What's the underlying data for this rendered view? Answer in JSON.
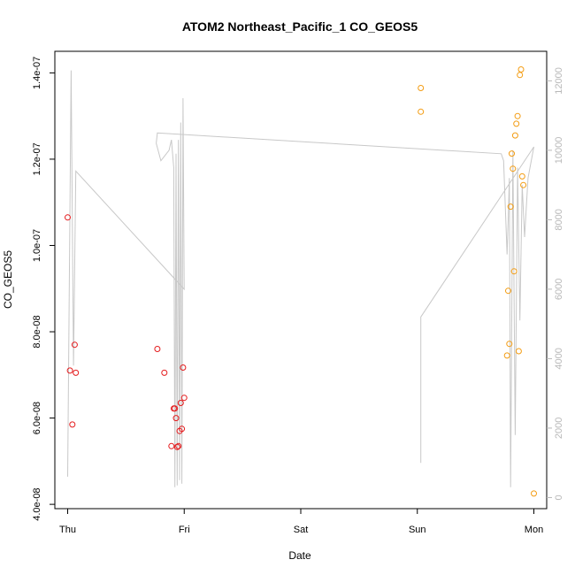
{
  "chart_data": {
    "type": "scatter",
    "title": "ATOM2 Northeast_Pacific_1 CO_GEOS5",
    "xlabel": "Date",
    "ylabel": "CO_GEOS5",
    "x_ticks": [
      "Thu",
      "Fri",
      "Sat",
      "Sun",
      "Mon"
    ],
    "xlim": [
      -0.11,
      4.11
    ],
    "ylim": [
      3.9e-08,
      1.45e-07
    ],
    "y_ticks": [
      "4.0e-08",
      "6.0e-08",
      "8.0e-08",
      "1.0e-07",
      "1.2e-07",
      "1.4e-07"
    ],
    "y_tick_values": [
      4e-08,
      6e-08,
      8e-08,
      1e-07,
      1.2e-07,
      1.4e-07
    ],
    "y2_ticks": [
      "0",
      "2000",
      "4000",
      "6000",
      "8000",
      "10000",
      "12000"
    ],
    "y2_tick_values": [
      0,
      2000,
      4000,
      6000,
      8000,
      10000,
      12000
    ],
    "y2lim": [
      -320,
      12850
    ],
    "colors": {
      "series_1": "#e41a1c",
      "series_2": "#f39c12",
      "altitude": "#c8c8c8",
      "axis": "#000000",
      "right_axis": "#b8b8b8"
    },
    "series": [
      {
        "x": [
          0.0,
          0.02,
          0.04,
          0.06,
          0.07,
          0.77,
          0.83,
          0.89,
          0.91,
          0.92,
          0.93,
          0.94,
          0.95,
          0.96,
          0.97,
          0.98,
          0.99,
          1.0
        ],
        "y": [
          1.065e-07,
          7.1e-08,
          5.85e-08,
          7.7e-08,
          7.05e-08,
          7.6e-08,
          7.05e-08,
          5.35e-08,
          6.22e-08,
          6.22e-08,
          6e-08,
          5.33e-08,
          5.35e-08,
          5.7e-08,
          6.35e-08,
          5.75e-08,
          7.17e-08,
          6.47e-08
        ]
      },
      {
        "x": [
          3.03,
          3.03,
          3.77,
          3.78,
          3.79,
          3.8,
          3.81,
          3.82,
          3.83,
          3.84,
          3.85,
          3.86,
          3.87,
          3.88,
          3.89,
          3.9,
          3.91,
          4.0
        ],
        "y": [
          1.365e-07,
          1.31e-07,
          7.45e-08,
          8.95e-08,
          7.72e-08,
          1.09e-07,
          1.213e-07,
          1.178e-07,
          9.4e-08,
          1.255e-07,
          1.282e-07,
          1.3e-07,
          7.55e-08,
          1.395e-07,
          1.408e-07,
          1.16e-07,
          1.14e-07,
          4.25e-08
        ]
      }
    ],
    "altitude": {
      "x": [
        0.0,
        0.03,
        0.05,
        0.07,
        1.0,
        0.99,
        0.98,
        0.97,
        0.96,
        0.95,
        0.94,
        0.93,
        0.92,
        0.91,
        0.89,
        0.87,
        0.8,
        0.76,
        0.77,
        3.72,
        3.74,
        3.77,
        3.78,
        3.79,
        3.8,
        3.82,
        3.84,
        3.86,
        3.88,
        3.9,
        3.92,
        3.95,
        4.0,
        3.03,
        3.03
      ],
      "y": [
        600,
        12300,
        3800,
        9400,
        6000,
        11500,
        400,
        10800,
        500,
        10300,
        350,
        9900,
        300,
        9500,
        10300,
        10000,
        9700,
        10200,
        10500,
        9900,
        9700,
        7000,
        8000,
        9200,
        300,
        10000,
        1800,
        9500,
        5100,
        9000,
        7500,
        9200,
        10100,
        5200,
        1000
      ]
    }
  }
}
